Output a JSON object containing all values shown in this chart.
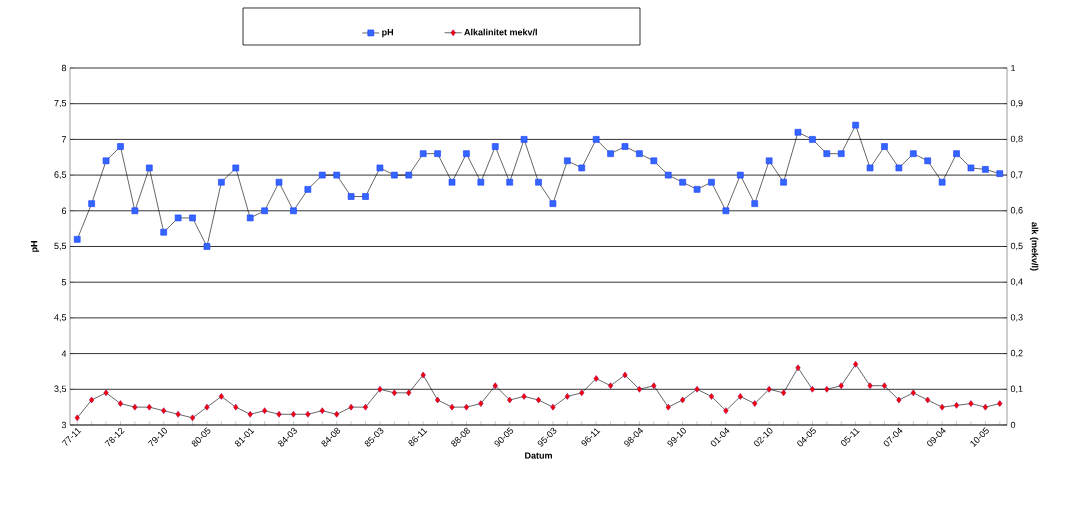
{
  "chart_data": {
    "type": "line",
    "xlabel": "Datum",
    "ylabel": "pH",
    "y2label": "alk (mekv/l)",
    "categories": [
      "77-11",
      null,
      null,
      "78-12",
      null,
      null,
      "79-10",
      null,
      null,
      "80-05",
      null,
      null,
      "81-01",
      null,
      null,
      "84-03",
      null,
      null,
      "84-08",
      null,
      null,
      "85-03",
      null,
      null,
      "86-11",
      null,
      null,
      "88-08",
      null,
      null,
      "90-05",
      null,
      null,
      "95-03",
      null,
      null,
      "96-11",
      null,
      null,
      "98-04",
      null,
      null,
      "99-10",
      null,
      null,
      "01-04",
      null,
      null,
      "02-10",
      null,
      null,
      "04-05",
      null,
      null,
      "05-11",
      null,
      null,
      "07-04",
      null,
      null,
      "09-04",
      null,
      null,
      "10-05",
      null
    ],
    "series": [
      {
        "name": "pH",
        "color": "#3366ff",
        "marker": "square",
        "values": [
          5.6,
          6.1,
          6.7,
          6.9,
          6.0,
          6.6,
          5.7,
          5.9,
          5.9,
          5.5,
          6.4,
          6.6,
          5.9,
          6.0,
          6.4,
          6.0,
          6.3,
          6.5,
          6.5,
          6.2,
          6.2,
          6.6,
          6.5,
          6.5,
          6.8,
          6.8,
          6.4,
          6.8,
          6.4,
          6.9,
          6.4,
          7.0,
          6.4,
          6.1,
          6.7,
          6.6,
          7.0,
          6.8,
          6.9,
          6.8,
          6.7,
          6.5,
          6.4,
          6.3,
          6.4,
          6.0,
          6.5,
          6.1,
          6.7,
          6.4,
          7.1,
          7.0,
          6.8,
          6.8,
          7.2,
          6.6,
          6.9,
          6.6,
          6.8,
          6.7,
          6.4,
          6.8,
          6.6,
          6.58,
          6.52
        ]
      },
      {
        "name": "Alkalinitet mekv/l",
        "color": "#ff0000",
        "marker": "diamond",
        "axis": "y2",
        "values": [
          0.02,
          0.07,
          0.09,
          0.06,
          0.05,
          0.05,
          0.04,
          0.03,
          0.02,
          0.05,
          0.08,
          0.05,
          0.03,
          0.04,
          0.03,
          0.03,
          0.03,
          0.04,
          0.03,
          0.05,
          0.05,
          0.1,
          0.09,
          0.09,
          0.14,
          0.07,
          0.05,
          0.05,
          0.06,
          0.11,
          0.07,
          0.08,
          0.07,
          0.05,
          0.08,
          0.09,
          0.13,
          0.11,
          0.14,
          0.1,
          0.11,
          0.05,
          0.07,
          0.1,
          0.08,
          0.04,
          0.08,
          0.06,
          0.1,
          0.09,
          0.16,
          0.1,
          0.1,
          0.11,
          0.17,
          0.11,
          0.11,
          0.07,
          0.09,
          0.07,
          0.05,
          0.055,
          0.06,
          0.05,
          0.06
        ]
      }
    ],
    "ylim": [
      3,
      8
    ],
    "yticks": [
      3,
      {
        "value": 3.5,
        "label": "3,5"
      },
      4,
      {
        "value": 4.5,
        "label": "4,5"
      },
      5,
      {
        "value": 5.5,
        "label": "5,5"
      },
      6,
      {
        "value": 6.5,
        "label": "6,5"
      },
      7,
      {
        "value": 7.5,
        "label": "7,5"
      },
      8
    ],
    "y2lim": [
      0,
      1
    ],
    "y2ticks": [
      0,
      {
        "value": 0.1,
        "label": "0,1"
      },
      {
        "value": 0.2,
        "label": "0,2"
      },
      {
        "value": 0.3,
        "label": "0,3"
      },
      {
        "value": 0.4,
        "label": "0,4"
      },
      {
        "value": 0.5,
        "label": "0,5"
      },
      {
        "value": 0.6,
        "label": "0,6"
      },
      {
        "value": 0.7,
        "label": "0,7"
      },
      {
        "value": 0.8,
        "label": "0,8"
      },
      {
        "value": 0.9,
        "label": "0,9"
      },
      1
    ],
    "grid": "y",
    "legend": "top",
    "line_style": "solid"
  }
}
